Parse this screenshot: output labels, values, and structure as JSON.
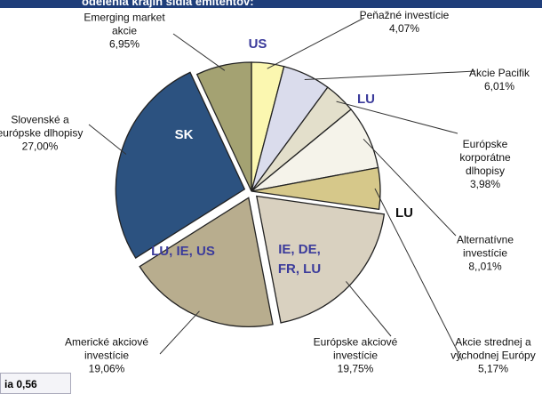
{
  "title": "odelenia krajín sídla emitentov:",
  "footer_note": "ia 0,56",
  "chart_data": {
    "type": "pie",
    "categories": [
      "Peňažné investície",
      "Akcie Pacifik",
      "Európske\nkorporátne\ndlhopisy",
      "Alternatívne\ninvestície",
      "Akcie strednej a\nvýchodnej Európy",
      "Európske akciové\ninvestície",
      "Americké akciové\ninvestície",
      "Slovenské a\neurópske dlhopisy",
      "Emerging market\nakcie"
    ],
    "values": [
      4.07,
      6.01,
      3.98,
      8.01,
      5.17,
      19.75,
      19.06,
      27.0,
      6.95
    ],
    "value_labels": [
      "4,07%",
      "6,01%",
      "3,98%",
      "8,,01%",
      "5,17%",
      "19,75%",
      "19,06%",
      "27,00%",
      "6,95%"
    ],
    "colors": [
      "#fbf7b0",
      "#dadcec",
      "#e3dfcb",
      "#f5f3ea",
      "#d6c88a",
      "#d9d1c0",
      "#b8ad8e",
      "#2c5280",
      "#a4a272"
    ],
    "annotations": [
      "US",
      "LU",
      "SK",
      "LU",
      "LU, IE, US",
      "IE, DE,\nFR, LU"
    ]
  }
}
